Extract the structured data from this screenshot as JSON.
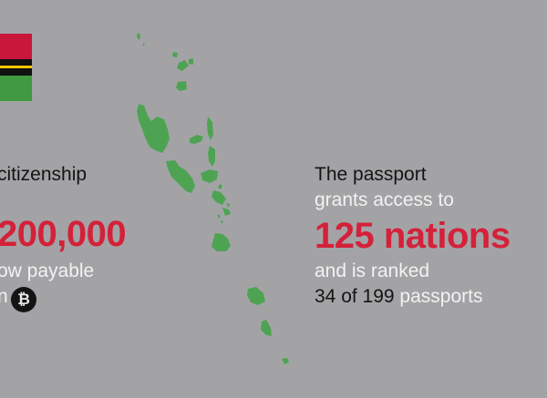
{
  "colors": {
    "accent_red": "#d4213a",
    "map_green": "#4ea352",
    "flag_red": "#c8173a",
    "flag_green": "#3f9a41",
    "flag_yellow": "#f2c600"
  },
  "left": {
    "label": "citizenship",
    "amount": "200,000",
    "payable": "ow payable",
    "in": "n"
  },
  "icons": {
    "currency": "bitcoin-icon",
    "btc_glyph": "₿"
  },
  "right": {
    "line1": "The passport",
    "line2": "grants access to",
    "headline": "125 nations",
    "line4": "and is ranked",
    "rank_part1": "34 of 199",
    "rank_part2": " passports"
  }
}
